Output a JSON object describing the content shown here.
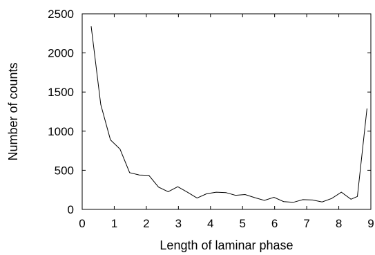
{
  "chart_data": {
    "type": "line",
    "title": "",
    "xlabel": "Length of laminar phase",
    "ylabel": "Number of counts",
    "xlim": [
      0,
      9
    ],
    "ylim": [
      0,
      2500
    ],
    "xticks": [
      0,
      1,
      2,
      3,
      4,
      5,
      6,
      7,
      8,
      9
    ],
    "yticks": [
      0,
      500,
      1000,
      1500,
      2000,
      2500
    ],
    "grid": false,
    "legend": "none",
    "series": [
      {
        "color": "#000000",
        "x": [
          0.28,
          0.58,
          0.88,
          1.18,
          1.48,
          1.78,
          2.08,
          2.38,
          2.68,
          2.98,
          3.28,
          3.58,
          3.88,
          4.18,
          4.48,
          4.78,
          5.08,
          5.38,
          5.68,
          5.98,
          6.28,
          6.58,
          6.88,
          7.18,
          7.48,
          7.78,
          8.08,
          8.38,
          8.58,
          8.88
        ],
        "y": [
          2340,
          1340,
          890,
          770,
          470,
          440,
          435,
          285,
          225,
          290,
          220,
          145,
          200,
          220,
          215,
          180,
          190,
          150,
          115,
          155,
          100,
          90,
          125,
          120,
          95,
          140,
          220,
          130,
          165,
          1290
        ]
      }
    ]
  }
}
